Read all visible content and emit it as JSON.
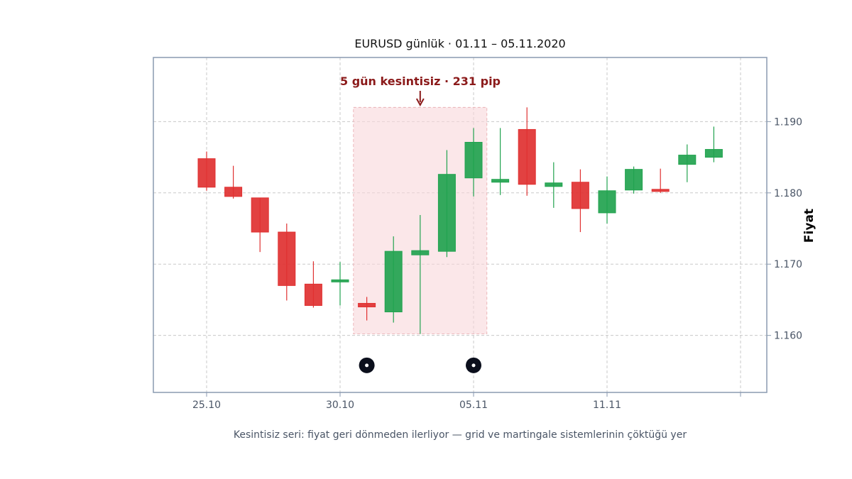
{
  "chart_data": {
    "type": "candlestick",
    "title": "EURUSD günlük · 01.11 – 05.11.2020",
    "ylabel": "Fiyat",
    "caption": "Kesintisiz seri: fiyat geri dönmeden ilerliyor — grid ve martingale sistemlerinin çöktüğü yer",
    "ylim": [
      1.152,
      1.199
    ],
    "yticks": [
      1.16,
      1.17,
      1.18,
      1.19
    ],
    "ytick_labels": [
      "1.160",
      "1.170",
      "1.180",
      "1.190"
    ],
    "x_ticks": [
      {
        "index": 0,
        "label": "25.10"
      },
      {
        "index": 5,
        "label": "30.10"
      },
      {
        "index": 10,
        "label": "05.11"
      },
      {
        "index": 15,
        "label": "11.11"
      },
      {
        "index": 20,
        "label": ""
      }
    ],
    "grid": true,
    "candles": [
      {
        "open": 1.1848,
        "high": 1.1858,
        "low": 1.1803,
        "close": 1.1808
      },
      {
        "open": 1.1808,
        "high": 1.1838,
        "low": 1.1792,
        "close": 1.1795
      },
      {
        "open": 1.1793,
        "high": 1.1793,
        "low": 1.1717,
        "close": 1.1745
      },
      {
        "open": 1.1745,
        "high": 1.1757,
        "low": 1.1649,
        "close": 1.167
      },
      {
        "open": 1.1672,
        "high": 1.1704,
        "low": 1.1639,
        "close": 1.1642
      },
      {
        "open": 1.1676,
        "high": 1.1703,
        "low": 1.1642,
        "close": 1.1678
      },
      {
        "open": 1.1645,
        "high": 1.1654,
        "low": 1.1621,
        "close": 1.164
      },
      {
        "open": 1.1633,
        "high": 1.1739,
        "low": 1.1618,
        "close": 1.1718
      },
      {
        "open": 1.1713,
        "high": 1.1769,
        "low": 1.1602,
        "close": 1.1719
      },
      {
        "open": 1.1718,
        "high": 1.186,
        "low": 1.171,
        "close": 1.1826
      },
      {
        "open": 1.1821,
        "high": 1.1891,
        "low": 1.1795,
        "close": 1.1871
      },
      {
        "open": 1.1815,
        "high": 1.1891,
        "low": 1.1797,
        "close": 1.1819
      },
      {
        "open": 1.1889,
        "high": 1.192,
        "low": 1.1796,
        "close": 1.1812
      },
      {
        "open": 1.1809,
        "high": 1.1843,
        "low": 1.1779,
        "close": 1.1814
      },
      {
        "open": 1.1815,
        "high": 1.1833,
        "low": 1.1745,
        "close": 1.1778
      },
      {
        "open": 1.1772,
        "high": 1.1823,
        "low": 1.1757,
        "close": 1.1803
      },
      {
        "open": 1.1804,
        "high": 1.1837,
        "low": 1.1799,
        "close": 1.1833
      },
      {
        "open": 1.1805,
        "high": 1.1834,
        "low": 1.18,
        "close": 1.1802
      },
      {
        "open": 1.184,
        "high": 1.1868,
        "low": 1.1815,
        "close": 1.1853
      },
      {
        "open": 1.185,
        "high": 1.1893,
        "low": 1.1843,
        "close": 1.1861
      }
    ],
    "highlight": {
      "from_index": 5.5,
      "to_index": 10.5,
      "y_from": 1.1602,
      "y_to": 1.192,
      "color": "#f8d7da",
      "label": "5 gün kesintisiz · 231 pip",
      "label_color": "#8b1a1a"
    },
    "markers": [
      {
        "index": 6,
        "y": 1.1558
      },
      {
        "index": 10,
        "y": 1.1558
      }
    ],
    "colors": {
      "up": "#22a34f",
      "down": "#e03131",
      "grid": "#c8c8c8",
      "frame": "#8a9ab0",
      "marker": "#0b0f1c"
    }
  }
}
